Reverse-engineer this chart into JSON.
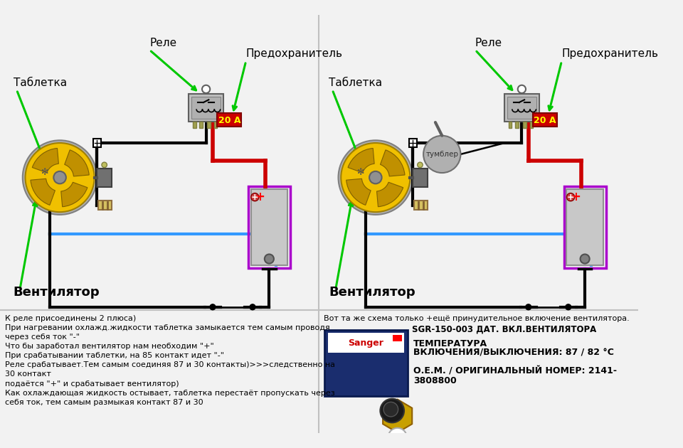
{
  "bg_color": "#f2f2f2",
  "left_text_block": [
    "К реле присоединены 2 плюса)",
    "При нагревании охлажд.жидкости таблетка замыкается тем самым проводя",
    "через себя ток \"-\"",
    "Что бы заработал вентилятор нам необходим \"+\"",
    "При срабатывании таблетки, на 85 контакт идет \"-\"",
    "Реле срабатывает.Тем самым соединяя 87 и 30 контакты)>>>следственно на",
    "30 контакт",
    "подаётся \"+\" и срабатывает вентилятор)",
    "Как охлаждающая жидкость остывает, таблетка перестаёт пропускать через",
    "себя ток, тем самым размыкая контакт 87 и 30"
  ],
  "right_text_line1": "Вот та же схема только +ещё принудительное включение вентилятора.",
  "right_text_line2": "SGR-150-003 ДАТ. ВКЛ.ВЕНТИЛЯТОРА",
  "right_text_line3": "ТЕМПЕРАТУРА",
  "right_text_line4": "ВКЛЮЧЕНИЯ/ВЫКЛЮЧЕНИЯ: 87 / 82 °С",
  "right_text_line5": "О.Е.М. / ОРИГИНАЛЬНЫЙ НОМЕР: 2141-",
  "right_text_line6": "3808800",
  "label_relay": "Реле",
  "label_tablet": "Таблетка",
  "label_fuse": "Предохранитель",
  "label_ventilator": "Вентилятор",
  "label_tumbler": "тумблер",
  "fuse_label": "20 А",
  "green_color": "#00c800",
  "red_color": "#cc0000",
  "blue_color": "#3399ff",
  "purple_color": "#aa00cc",
  "fuse_bg": "#cc0000",
  "fuse_text_color": "#ffff00",
  "white": "#ffffff",
  "black": "#000000",
  "gray": "#888888",
  "light_gray": "#cccccc",
  "yellow_fan": "#f0c000",
  "dark_yellow": "#c09000"
}
